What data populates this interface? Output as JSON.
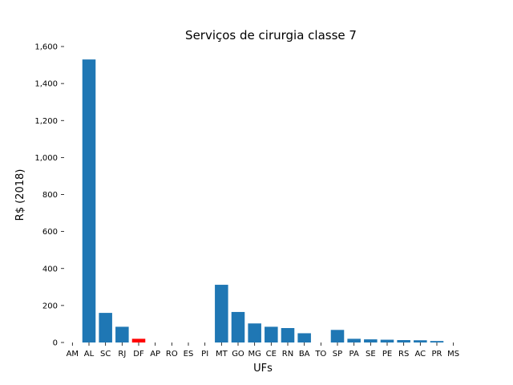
{
  "chart_data": {
    "type": "bar",
    "title": "Serviços de cirurgia classe 7",
    "xlabel": "UFs",
    "ylabel": "R$ (2018)",
    "categories": [
      "AM",
      "AL",
      "SC",
      "RJ",
      "DF",
      "AP",
      "RO",
      "ES",
      "PI",
      "MT",
      "GO",
      "MG",
      "CE",
      "RN",
      "BA",
      "TO",
      "SP",
      "PA",
      "SE",
      "PE",
      "RS",
      "AC",
      "PR",
      "MS"
    ],
    "values": [
      0,
      1530,
      160,
      85,
      20,
      0,
      0,
      0,
      0,
      312,
      165,
      103,
      85,
      78,
      50,
      0,
      68,
      20,
      17,
      15,
      13,
      12,
      8,
      0
    ],
    "ylim": [
      0,
      1600
    ],
    "yticks": [
      0,
      200,
      400,
      600,
      800,
      1000,
      1200,
      1400,
      1600
    ],
    "ytick_labels": [
      "0",
      "200",
      "400",
      "600",
      "800",
      "1,000",
      "1,200",
      "1,400",
      "1,600"
    ],
    "bar_color": "#1f77b4",
    "highlight_category": "DF",
    "highlight_color": "#ff0000",
    "grid": false,
    "frame": false
  }
}
